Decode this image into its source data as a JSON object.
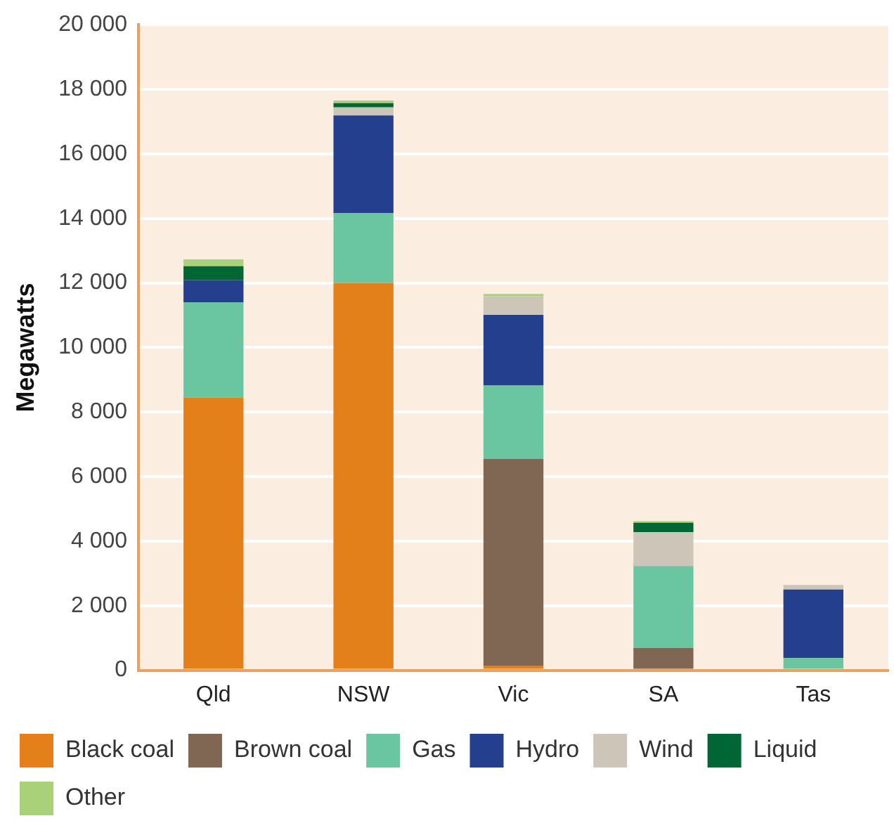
{
  "chart_data": {
    "type": "bar",
    "stacked": true,
    "ylabel": "Megawatts",
    "categories": [
      "Qld",
      "NSW",
      "Vic",
      "SA",
      "Tas"
    ],
    "series": [
      {
        "name": "Black coal",
        "color": "#e4801a",
        "values": [
          8450,
          12000,
          130,
          0,
          0
        ]
      },
      {
        "name": "Brown coal",
        "color": "#7f6754",
        "values": [
          0,
          0,
          6420,
          690,
          0
        ]
      },
      {
        "name": "Gas",
        "color": "#6ac6a0",
        "values": [
          2950,
          2170,
          2270,
          2540,
          380
        ]
      },
      {
        "name": "Hydro",
        "color": "#243f8e",
        "values": [
          690,
          3020,
          2190,
          0,
          2120
        ]
      },
      {
        "name": "Wind",
        "color": "#cec5b9",
        "values": [
          0,
          250,
          580,
          1050,
          140
        ]
      },
      {
        "name": "Liquid",
        "color": "#006633",
        "values": [
          430,
          130,
          0,
          290,
          0
        ]
      },
      {
        "name": "Other",
        "color": "#a9d17a",
        "values": [
          210,
          80,
          70,
          50,
          0
        ]
      }
    ],
    "ylim": [
      0,
      20000
    ],
    "yticks": [
      {
        "value": 0,
        "label": "0"
      },
      {
        "value": 2000,
        "label": "2 000"
      },
      {
        "value": 4000,
        "label": "4 000"
      },
      {
        "value": 6000,
        "label": "6 000"
      },
      {
        "value": 8000,
        "label": "8 000"
      },
      {
        "value": 10000,
        "label": "10 000"
      },
      {
        "value": 12000,
        "label": "12 000"
      },
      {
        "value": 14000,
        "label": "14 000"
      },
      {
        "value": 16000,
        "label": "16 000"
      },
      {
        "value": 18000,
        "label": "18 000"
      },
      {
        "value": 20000,
        "label": "20 000"
      }
    ],
    "grid": "y",
    "legend": "bottom"
  }
}
